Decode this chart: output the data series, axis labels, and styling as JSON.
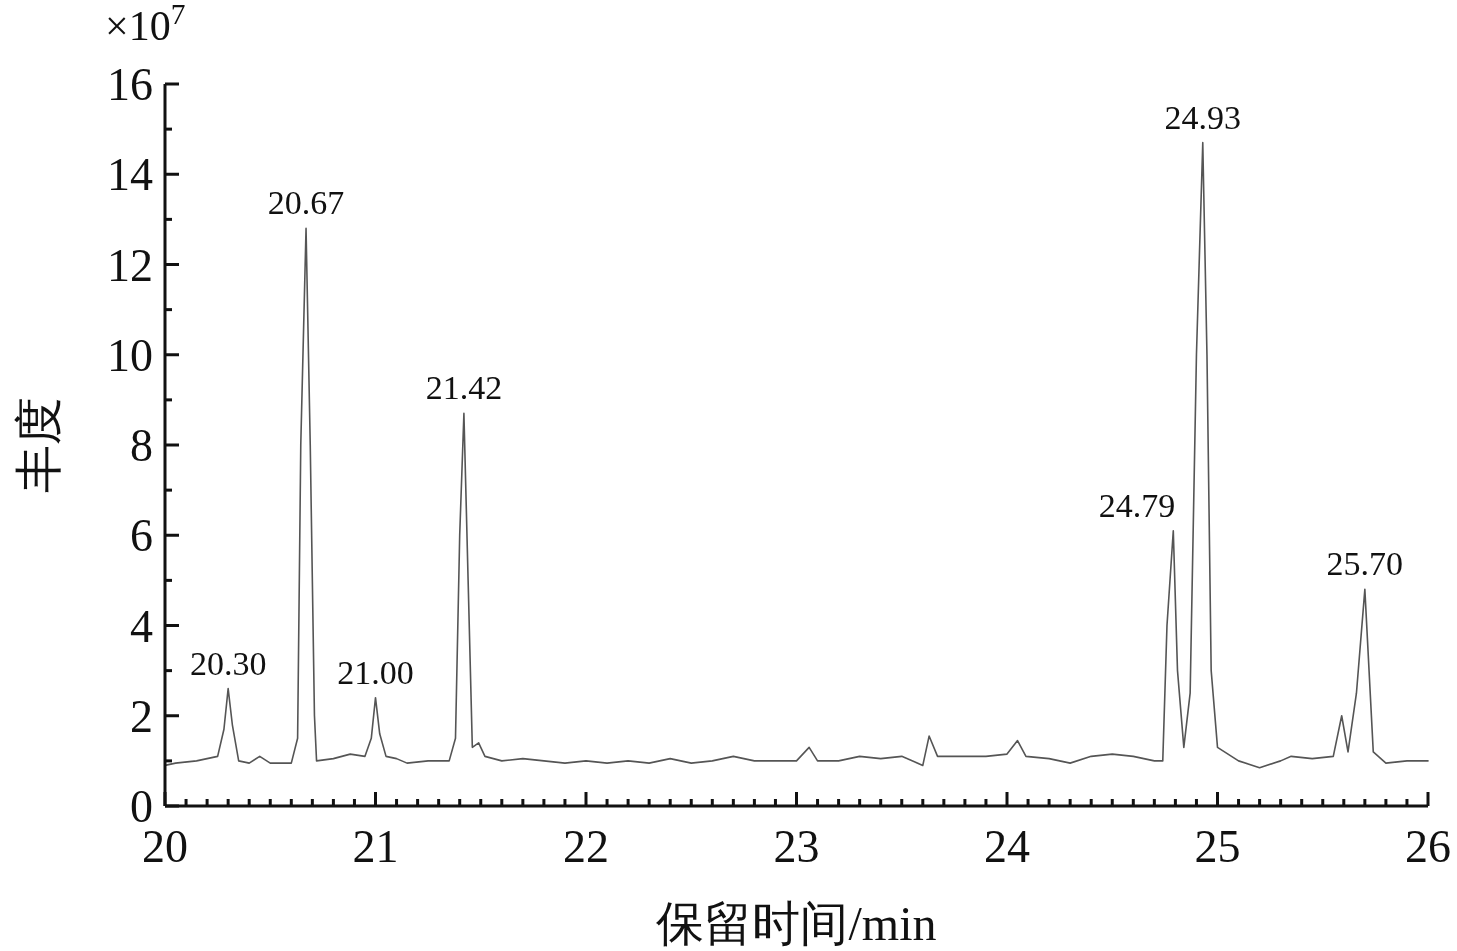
{
  "chart_data": {
    "type": "line",
    "xlabel": "保留时间/min",
    "ylabel": "丰度",
    "annotations": [
      "×10$^{7}$",
      {
        "text": "20.30",
        "x": 20.3,
        "y": 2.6
      },
      {
        "text": "20.67",
        "x": 20.67,
        "y": 12.8
      },
      {
        "text": "21.00",
        "x": 21.0,
        "y": 2.4
      },
      {
        "text": "21.42",
        "x": 21.42,
        "y": 8.7
      },
      {
        "text": "24.79",
        "x": 24.79,
        "y": 6.1
      },
      {
        "text": "24.93",
        "x": 24.93,
        "y": 14.7
      },
      {
        "text": "25.70",
        "x": 25.7,
        "y": 4.8
      }
    ],
    "xlim": [
      20,
      26
    ],
    "xticks": [
      20,
      {
        "value": 20.1,
        "label": null
      },
      {
        "value": 20.2,
        "label": null
      },
      {
        "value": 20.3,
        "label": null
      },
      {
        "value": 20.4,
        "label": null
      },
      {
        "value": 20.5,
        "label": null
      },
      {
        "value": 20.6,
        "label": null
      },
      {
        "value": 20.7,
        "label": null
      },
      {
        "value": 20.8,
        "label": null
      },
      {
        "value": 20.9,
        "label": null
      },
      21,
      {
        "value": 21.1,
        "label": null
      },
      {
        "value": 21.2,
        "label": null
      },
      {
        "value": 21.3,
        "label": null
      },
      {
        "value": 21.4,
        "label": null
      },
      {
        "value": 21.5,
        "label": null
      },
      {
        "value": 21.6,
        "label": null
      },
      {
        "value": 21.7,
        "label": null
      },
      {
        "value": 21.8,
        "label": null
      },
      {
        "value": 21.9,
        "label": null
      },
      22,
      {
        "value": 22.1,
        "label": null
      },
      {
        "value": 22.2,
        "label": null
      },
      {
        "value": 22.3,
        "label": null
      },
      {
        "value": 22.4,
        "label": null
      },
      {
        "value": 22.5,
        "label": null
      },
      {
        "value": 22.6,
        "label": null
      },
      {
        "value": 22.7,
        "label": null
      },
      {
        "value": 22.8,
        "label": null
      },
      {
        "value": 22.9,
        "label": null
      },
      23,
      {
        "value": 23.1,
        "label": null
      },
      {
        "value": 23.2,
        "label": null
      },
      {
        "value": 23.3,
        "label": null
      },
      {
        "value": 23.4,
        "label": null
      },
      {
        "value": 23.5,
        "label": null
      },
      {
        "value": 23.6,
        "label": null
      },
      {
        "value": 23.7,
        "label": null
      },
      {
        "value": 23.8,
        "label": null
      },
      {
        "value": 23.9,
        "label": null
      },
      24,
      {
        "value": 24.1,
        "label": null
      },
      {
        "value": 24.2,
        "label": null
      },
      {
        "value": 24.3,
        "label": null
      },
      {
        "value": 24.4,
        "label": null
      },
      {
        "value": 24.5,
        "label": null
      },
      {
        "value": 24.6,
        "label": null
      },
      {
        "value": 24.7,
        "label": null
      },
      {
        "value": 24.8,
        "label": null
      },
      {
        "value": 24.9,
        "label": null
      },
      25,
      {
        "value": 25.1,
        "label": null
      },
      {
        "value": 25.2,
        "label": null
      },
      {
        "value": 25.3,
        "label": null
      },
      {
        "value": 25.4,
        "label": null
      },
      {
        "value": 25.5,
        "label": null
      },
      {
        "value": 25.6,
        "label": null
      },
      {
        "value": 25.7,
        "label": null
      },
      {
        "value": 25.8,
        "label": null
      },
      {
        "value": 25.9,
        "label": null
      },
      26
    ],
    "ylim": [
      0,
      16
    ],
    "yticks": [
      0,
      {
        "value": 1,
        "label": null
      },
      2,
      {
        "value": 3,
        "label": null
      },
      4,
      {
        "value": 5,
        "label": null
      },
      6,
      {
        "value": 7,
        "label": null
      },
      8,
      {
        "value": 9,
        "label": null
      },
      10,
      {
        "value": 11,
        "label": null
      },
      12,
      {
        "value": 13,
        "label": null
      },
      14,
      {
        "value": 15,
        "label": null
      },
      16
    ],
    "grid": false,
    "series": [
      {
        "color": "#555555",
        "x": [
          20.0,
          20.05,
          20.15,
          20.25,
          20.28,
          20.3,
          20.32,
          20.35,
          20.4,
          20.45,
          20.5,
          20.6,
          20.63,
          20.645,
          20.67,
          20.69,
          20.71,
          20.72,
          20.8,
          20.88,
          20.95,
          20.98,
          21.0,
          21.02,
          21.05,
          21.1,
          21.15,
          21.25,
          21.35,
          21.38,
          21.4,
          21.42,
          21.44,
          21.46,
          21.49,
          21.52,
          21.6,
          21.7,
          21.8,
          21.9,
          22.0,
          22.1,
          22.2,
          22.3,
          22.4,
          22.5,
          22.6,
          22.7,
          22.8,
          22.9,
          23.0,
          23.06,
          23.1,
          23.2,
          23.3,
          23.4,
          23.5,
          23.6,
          23.63,
          23.67,
          23.8,
          23.9,
          24.0,
          24.05,
          24.09,
          24.2,
          24.3,
          24.4,
          24.5,
          24.6,
          24.7,
          24.74,
          24.76,
          24.79,
          24.81,
          24.84,
          24.87,
          24.9,
          24.93,
          24.95,
          24.97,
          25.0,
          25.1,
          25.2,
          25.3,
          25.35,
          25.45,
          25.55,
          25.59,
          25.62,
          25.66,
          25.7,
          25.72,
          25.74,
          25.8,
          25.9,
          26.0
        ],
        "values": [
          0.9,
          0.95,
          1.0,
          1.1,
          1.7,
          2.6,
          1.8,
          1.0,
          0.95,
          1.1,
          0.95,
          0.95,
          1.5,
          8,
          12.8,
          8,
          2,
          1.0,
          1.05,
          1.15,
          1.1,
          1.5,
          2.4,
          1.6,
          1.1,
          1.05,
          0.95,
          1.0,
          1.0,
          1.5,
          6,
          8.7,
          5,
          1.3,
          1.4,
          1.1,
          1.0,
          1.05,
          1.0,
          0.95,
          1.0,
          0.95,
          1.0,
          0.95,
          1.05,
          0.95,
          1.0,
          1.1,
          1.0,
          1.0,
          1.0,
          1.3,
          1.0,
          1.0,
          1.1,
          1.05,
          1.1,
          0.9,
          1.55,
          1.1,
          1.1,
          1.1,
          1.15,
          1.45,
          1.1,
          1.05,
          0.95,
          1.1,
          1.15,
          1.1,
          1.0,
          1.0,
          4,
          6.1,
          3,
          1.3,
          2.5,
          10,
          14.7,
          10,
          3,
          1.3,
          1.0,
          0.85,
          1.0,
          1.1,
          1.05,
          1.1,
          2.0,
          1.2,
          2.5,
          4.8,
          3,
          1.2,
          0.95,
          1.0,
          1.0
        ]
      }
    ]
  }
}
